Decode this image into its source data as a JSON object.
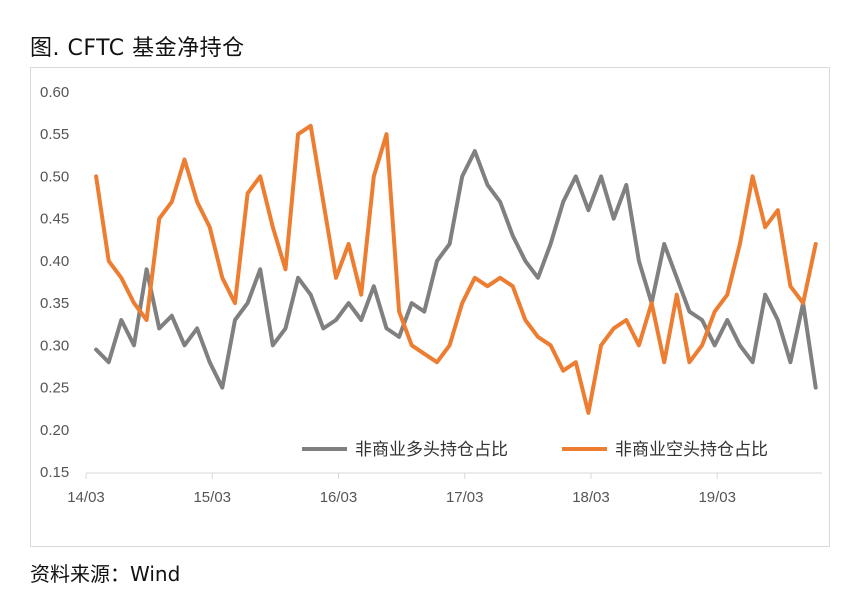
{
  "title": "图. CFTC 基金净持仓",
  "source": "资料来源：Wind",
  "chart_data": {
    "type": "line",
    "title": "图. CFTC 基金净持仓",
    "xlabel": "",
    "ylabel": "",
    "ylim": [
      0.15,
      0.6
    ],
    "y_ticks": [
      "0.60",
      "0.55",
      "0.50",
      "0.45",
      "0.40",
      "0.35",
      "0.30",
      "0.25",
      "0.20",
      "0.15"
    ],
    "x_ticks": [
      "14/03",
      "15/03",
      "16/03",
      "17/03",
      "18/03",
      "19/03"
    ],
    "grid": false,
    "legend_position": "bottom-right",
    "x": [
      2014.25,
      2014.35,
      2014.45,
      2014.55,
      2014.65,
      2014.75,
      2014.85,
      2014.95,
      2015.05,
      2015.15,
      2015.25,
      2015.35,
      2015.45,
      2015.55,
      2015.65,
      2015.75,
      2015.85,
      2015.95,
      2016.05,
      2016.15,
      2016.25,
      2016.35,
      2016.45,
      2016.55,
      2016.65,
      2016.75,
      2016.85,
      2016.95,
      2017.05,
      2017.15,
      2017.25,
      2017.35,
      2017.45,
      2017.55,
      2017.65,
      2017.75,
      2017.85,
      2017.95,
      2018.05,
      2018.15,
      2018.25,
      2018.35,
      2018.45,
      2018.55,
      2018.65,
      2018.75,
      2018.85,
      2018.95,
      2019.05,
      2019.15,
      2019.25,
      2019.35,
      2019.45,
      2019.55,
      2019.65,
      2019.75,
      2019.85,
      2019.95
    ],
    "series": [
      {
        "name": "非商业多头持仓占比",
        "color": "#808080",
        "values": [
          0.295,
          0.28,
          0.33,
          0.3,
          0.39,
          0.32,
          0.335,
          0.3,
          0.32,
          0.28,
          0.25,
          0.33,
          0.35,
          0.39,
          0.3,
          0.32,
          0.38,
          0.36,
          0.32,
          0.33,
          0.35,
          0.33,
          0.37,
          0.32,
          0.31,
          0.35,
          0.34,
          0.4,
          0.42,
          0.5,
          0.53,
          0.49,
          0.47,
          0.43,
          0.4,
          0.38,
          0.42,
          0.47,
          0.5,
          0.46,
          0.5,
          0.45,
          0.49,
          0.4,
          0.35,
          0.42,
          0.38,
          0.34,
          0.33,
          0.3,
          0.33,
          0.3,
          0.28,
          0.36,
          0.33,
          0.28,
          0.35,
          0.25
        ]
      },
      {
        "name": "非商业空头持仓占比",
        "color": "#ED7D31",
        "values": [
          0.5,
          0.4,
          0.38,
          0.35,
          0.33,
          0.45,
          0.47,
          0.52,
          0.47,
          0.44,
          0.38,
          0.35,
          0.48,
          0.5,
          0.44,
          0.39,
          0.55,
          0.56,
          0.47,
          0.38,
          0.42,
          0.36,
          0.5,
          0.55,
          0.34,
          0.3,
          0.29,
          0.28,
          0.3,
          0.35,
          0.38,
          0.37,
          0.38,
          0.37,
          0.33,
          0.31,
          0.3,
          0.27,
          0.28,
          0.22,
          0.3,
          0.32,
          0.33,
          0.3,
          0.35,
          0.28,
          0.36,
          0.28,
          0.3,
          0.34,
          0.36,
          0.42,
          0.5,
          0.44,
          0.46,
          0.37,
          0.35,
          0.42
        ]
      }
    ]
  }
}
